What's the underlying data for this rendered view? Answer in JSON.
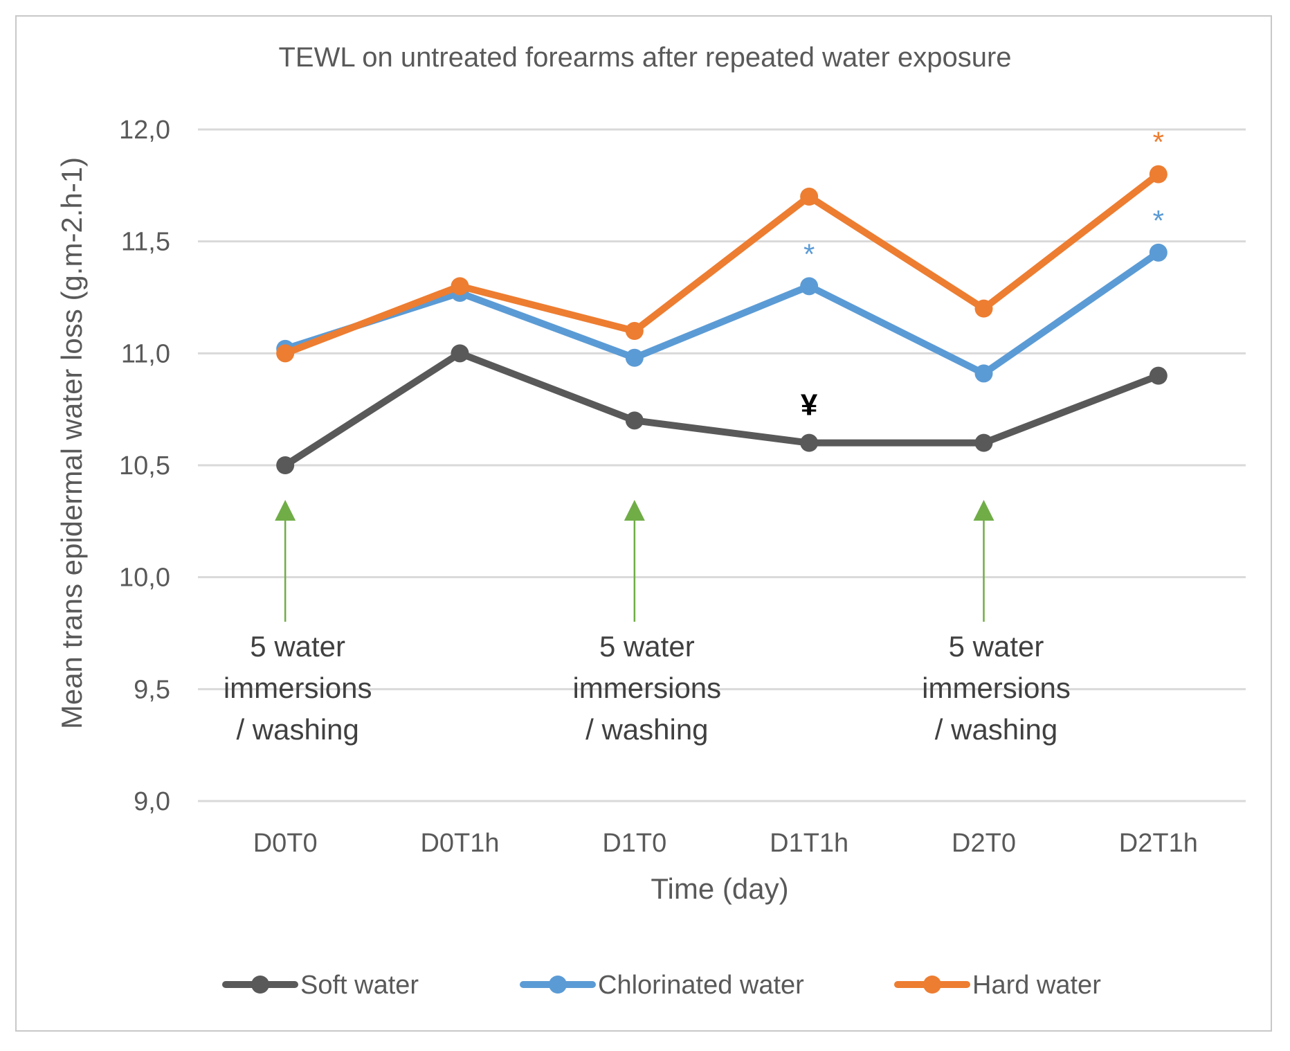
{
  "chart_data": {
    "type": "line",
    "title": "TEWL on untreated forearms after repeated water exposure",
    "xlabel": "Time (day)",
    "ylabel": "Mean trans epidermal water loss (g.m-2.h-1)",
    "categories": [
      "D0T0",
      "D0T1h",
      "D1T0",
      "D1T1h",
      "D2T0",
      "D2T1h"
    ],
    "ylim": [
      9.0,
      12.0
    ],
    "yticks": [
      9.0,
      9.5,
      10.0,
      10.5,
      11.0,
      11.5,
      12.0
    ],
    "ytick_labels": [
      "9,0",
      "9,5",
      "10,0",
      "10,5",
      "11,0",
      "11,5",
      "12,0"
    ],
    "grid": true,
    "legend_position": "bottom",
    "series": [
      {
        "name": "Soft water",
        "color": "#595959",
        "values": [
          10.5,
          11.0,
          10.7,
          10.6,
          10.6,
          10.9
        ]
      },
      {
        "name": "Chlorinated water",
        "color": "#5b9bd5",
        "values": [
          11.02,
          11.27,
          10.98,
          11.3,
          10.91,
          11.45
        ]
      },
      {
        "name": "Hard water",
        "color": "#ed7d31",
        "values": [
          11.0,
          11.3,
          11.1,
          11.7,
          11.2,
          11.8
        ]
      }
    ],
    "markers": [
      {
        "text": "*",
        "series": "Chlorinated water",
        "category": "D1T1h",
        "color": "#5b9bd5"
      },
      {
        "text": "*",
        "series": "Chlorinated water",
        "category": "D2T1h",
        "color": "#5b9bd5"
      },
      {
        "text": "*",
        "series": "Hard water",
        "category": "D2T1h",
        "color": "#ed7d31"
      },
      {
        "text": "¥",
        "series": "Soft water",
        "category": "D1T1h",
        "color": "#000000"
      }
    ],
    "annotations": [
      {
        "category": "D0T0",
        "lines": [
          "5 water",
          "immersions",
          "/ washing"
        ],
        "arrow_color": "#70ad47"
      },
      {
        "category": "D1T0",
        "lines": [
          "5 water",
          "immersions",
          "/ washing"
        ],
        "arrow_color": "#70ad47"
      },
      {
        "category": "D2T0",
        "lines": [
          "5 water",
          "immersions",
          "/ washing"
        ],
        "arrow_color": "#70ad47"
      }
    ]
  }
}
